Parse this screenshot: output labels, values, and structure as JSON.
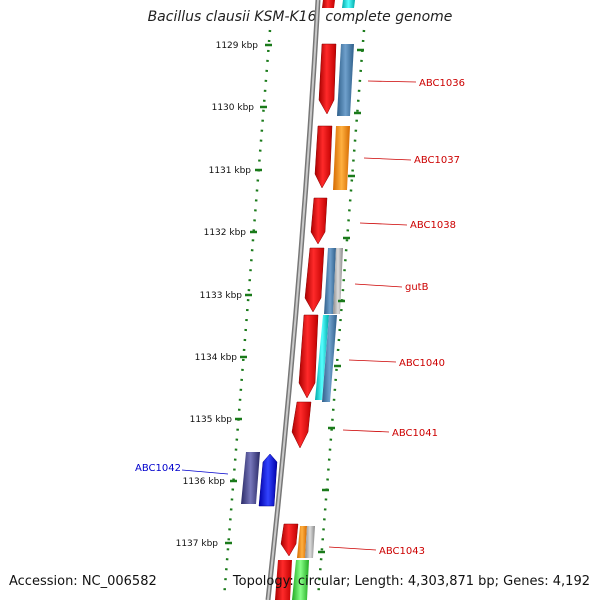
{
  "title": "Bacillus clausii KSM-K16, complete genome",
  "accession": "Accession: NC_006582",
  "topology": "Topology: circular; Length: 4,303,871 bp; Genes: 4,192",
  "colors": {
    "tick": "#1a7a1a",
    "backbone": "#8a8a8a",
    "label_red": "#cc0000",
    "label_blue": "#0000cc"
  },
  "scale_ticks": [
    "1129 kbp",
    "1130 kbp",
    "1131 kbp",
    "1132 kbp",
    "1133 kbp",
    "1134 kbp",
    "1135 kbp",
    "1136 kbp",
    "1137 kbp"
  ],
  "gene_labels": [
    {
      "name": "ABC1036",
      "color": "#cc0000"
    },
    {
      "name": "ABC1037",
      "color": "#cc0000"
    },
    {
      "name": "ABC1038",
      "color": "#cc0000"
    },
    {
      "name": "gutB",
      "color": "#cc0000"
    },
    {
      "name": "ABC1040",
      "color": "#cc0000"
    },
    {
      "name": "ABC1041",
      "color": "#cc0000"
    },
    {
      "name": "ABC1042",
      "color": "#0000cc"
    },
    {
      "name": "ABC1043",
      "color": "#cc0000"
    }
  ]
}
